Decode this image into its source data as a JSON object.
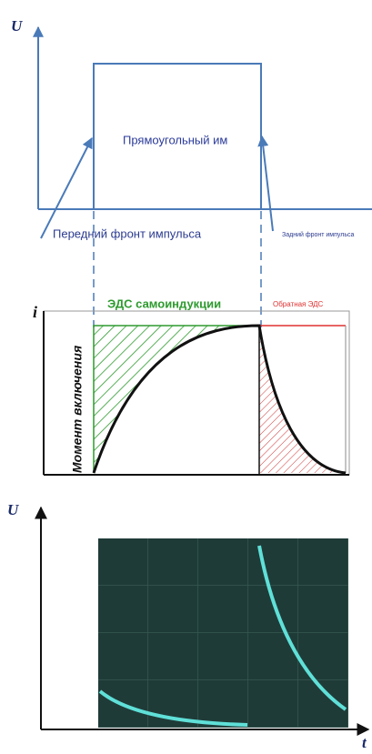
{
  "top": {
    "axis_label": "U",
    "pulse_label": "Прямоугольный им",
    "front_label": "Передний фронт импульса",
    "back_label": "Задний фронт импульса"
  },
  "middle": {
    "axis_label": "i",
    "emf_label": "ЭДС самоиндукции",
    "reverse_label": "Обратная ЭДС",
    "switch_label": "Момент включения"
  },
  "bottom": {
    "y_label": "U",
    "x_label": "t"
  }
}
